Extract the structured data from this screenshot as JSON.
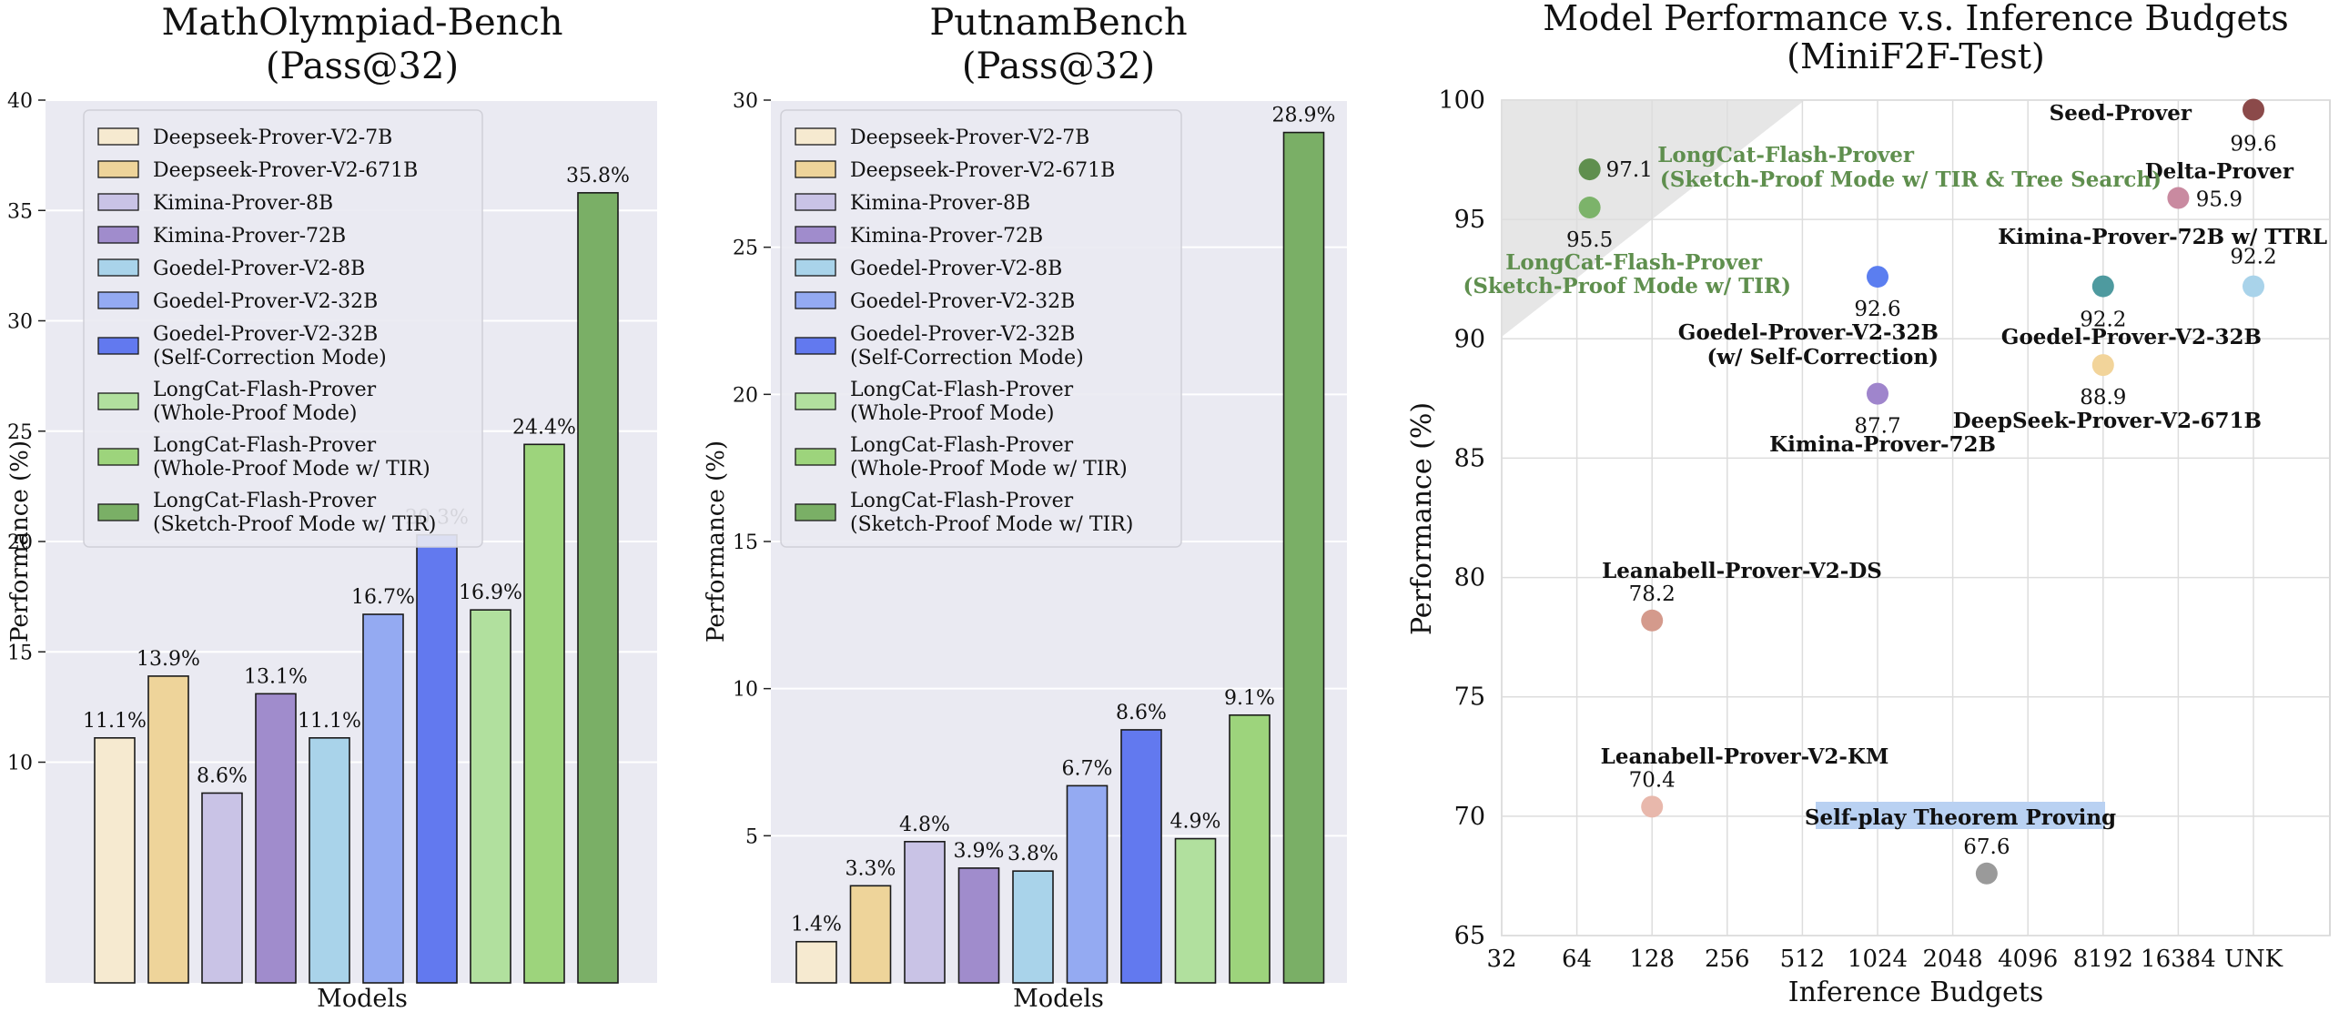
{
  "colors": {
    "panel_bg": "#eaeaf2",
    "scatter_bg": "#ffffff",
    "longcat_green": "#5f8f4e",
    "budget_box": "#b9d1f2"
  },
  "chart_data": [
    {
      "type": "bar",
      "title_line1": "MathOlympiad-Bench",
      "title_line2": "(Pass@32)",
      "xlabel": "Models",
      "ylabel": "Performance (%)",
      "ylim": [
        0,
        40
      ],
      "yticks": [
        10,
        15,
        20,
        25,
        30,
        35,
        40
      ],
      "grid": true,
      "legend_position": "upper-left",
      "categories": [
        "Deepseek-Prover-V2-7B",
        "Deepseek-Prover-V2-671B",
        "Kimina-Prover-8B",
        "Kimina-Prover-72B",
        "Goedel-Prover-V2-8B",
        "Goedel-Prover-V2-32B",
        "Goedel-Prover-V2-32B (Self-Correction Mode)",
        "LongCat-Flash-Prover (Whole-Proof Mode)",
        "LongCat-Flash-Prover (Whole-Proof Mode w/ TIR)",
        "LongCat-Flash-Prover (Sketch-Proof Mode w/ TIR)"
      ],
      "values": [
        11.1,
        13.9,
        8.6,
        13.1,
        11.1,
        16.7,
        20.3,
        16.9,
        24.4,
        35.8
      ],
      "labels": [
        "11.1%",
        "13.9%",
        "8.6%",
        "13.1%",
        "11.1%",
        "16.7%",
        "20.3%",
        "16.9%",
        "24.4%",
        "35.8%"
      ]
    },
    {
      "type": "bar",
      "title_line1": "PutnamBench",
      "title_line2": "(Pass@32)",
      "xlabel": "Models",
      "ylabel": "Performance (%)",
      "ylim": [
        0,
        30
      ],
      "yticks": [
        5,
        10,
        15,
        20,
        25,
        30
      ],
      "grid": true,
      "legend_position": "upper-left",
      "categories": [
        "Deepseek-Prover-V2-7B",
        "Deepseek-Prover-V2-671B",
        "Kimina-Prover-8B",
        "Kimina-Prover-72B",
        "Goedel-Prover-V2-8B",
        "Goedel-Prover-V2-32B",
        "Goedel-Prover-V2-32B (Self-Correction Mode)",
        "LongCat-Flash-Prover (Whole-Proof Mode)",
        "LongCat-Flash-Prover (Whole-Proof Mode w/ TIR)",
        "LongCat-Flash-Prover (Sketch-Proof Mode w/ TIR)"
      ],
      "values": [
        1.4,
        3.3,
        4.8,
        3.9,
        3.8,
        6.7,
        8.6,
        4.9,
        9.1,
        28.9
      ],
      "labels": [
        "1.4%",
        "3.3%",
        "4.8%",
        "3.9%",
        "3.8%",
        "6.7%",
        "8.6%",
        "4.9%",
        "9.1%",
        "28.9%"
      ]
    },
    {
      "type": "scatter",
      "title_line1": "Model Performance v.s. Inference Budgets",
      "title_line2": "(MiniF2F-Test)",
      "xlabel": "Inference Budgets",
      "ylabel": "Performance (%)",
      "x_categories": [
        "32",
        "64",
        "128",
        "256",
        "512",
        "1024",
        "2048",
        "4096",
        "8192",
        "16384",
        "UNK"
      ],
      "ylim": [
        65,
        100
      ],
      "yticks": [
        65,
        70,
        75,
        80,
        85,
        90,
        95,
        100
      ],
      "grid": true,
      "points": [
        {
          "name": "Seed-Prover",
          "x": "UNK",
          "y": 99.6,
          "value_label": "99.6",
          "color": "#8b4a4a"
        },
        {
          "name": "Delta-Prover",
          "x": "16384",
          "y": 95.9,
          "value_label": "95.9",
          "color": "#c98aa0"
        },
        {
          "name": "Kimina-Prover-72B w/ TTRL",
          "x": "UNK",
          "y": 92.2,
          "value_label": "92.2",
          "color": "#a9d3ea"
        },
        {
          "name": "Goedel-Prover-V2-32B",
          "x": "8192",
          "y": 92.2,
          "value_label": "92.2",
          "color": "#4e9a9f"
        },
        {
          "name": "DeepSeek-Prover-V2-671B",
          "x": "8192",
          "y": 88.9,
          "value_label": "88.9",
          "color": "#f2d49a"
        },
        {
          "name": "Goedel-Prover-V2-32B (w/ Self-Correction)",
          "x": "1024",
          "y": 92.6,
          "value_label": "92.6",
          "color": "#5b7ef0"
        },
        {
          "name": "Kimina-Prover-72B",
          "x": "1024",
          "y": 87.7,
          "value_label": "87.7",
          "color": "#9f85cc"
        },
        {
          "name": "LongCat-Flash-Prover (Sketch-Proof Mode w/ TIR & Tree Search)",
          "x": "72",
          "y": 97.1,
          "value_label": "97.1",
          "color": "#5f8f4e"
        },
        {
          "name": "LongCat-Flash-Prover (Sketch-Proof Mode w/ TIR)",
          "x": "72",
          "y": 95.5,
          "value_label": "95.5",
          "color": "#7cb36a"
        },
        {
          "name": "Leanabell-Prover-V2-DS",
          "x": "128",
          "y": 78.2,
          "value_label": "78.2",
          "color": "#d49a8c"
        },
        {
          "name": "Leanabell-Prover-V2-KM",
          "x": "128",
          "y": 70.4,
          "value_label": "70.4",
          "color": "#e8b8ac"
        },
        {
          "name": "Self-play Theorem Proving",
          "x": "2800",
          "y": 67.6,
          "value_label": "67.6",
          "color": "#9a9a9a"
        }
      ],
      "labels": {
        "seed": "Seed-Prover",
        "delta": "Delta-Prover",
        "kimina_ttrl": "Kimina-Prover-72B w/ TTRL",
        "goedel32": "Goedel-Prover-V2-32B",
        "deepseek671": "DeepSeek-Prover-V2-671B",
        "goedel_sc_1": "Goedel-Prover-V2-32B",
        "goedel_sc_2": "(w/ Self-Correction)",
        "kimina72": "Kimina-Prover-72B",
        "longcat_tree_1": "LongCat-Flash-Prover",
        "longcat_tree_2": "(Sketch-Proof Mode w/ TIR & Tree Search)",
        "longcat_tir_1": "LongCat-Flash-Prover",
        "longcat_tir_2": "(Sketch-Proof Mode w/ TIR)",
        "leanabell_ds": "Leanabell-Prover-V2-DS",
        "leanabell_km": "Leanabell-Prover-V2-KM",
        "selfplay": "Self-play Theorem Proving"
      }
    }
  ],
  "legend": {
    "entries": [
      {
        "line1": "Deepseek-Prover-V2-7B",
        "line2": "",
        "color": "#f6ead0"
      },
      {
        "line1": "Deepseek-Prover-V2-671B",
        "line2": "",
        "color": "#eed49a"
      },
      {
        "line1": "Kimina-Prover-8B",
        "line2": "",
        "color": "#c9c3e6"
      },
      {
        "line1": "Kimina-Prover-72B",
        "line2": "",
        "color": "#a08ccc"
      },
      {
        "line1": "Goedel-Prover-V2-8B",
        "line2": "",
        "color": "#a9d3ea"
      },
      {
        "line1": "Goedel-Prover-V2-32B",
        "line2": "",
        "color": "#94aaf2"
      },
      {
        "line1": "Goedel-Prover-V2-32B",
        "line2": "(Self-Correction Mode)",
        "color": "#6279ef"
      },
      {
        "line1": "LongCat-Flash-Prover",
        "line2": "(Whole-Proof Mode)",
        "color": "#b1e09e"
      },
      {
        "line1": "LongCat-Flash-Prover",
        "line2": "(Whole-Proof Mode w/ TIR)",
        "color": "#9dd47c"
      },
      {
        "line1": "LongCat-Flash-Prover",
        "line2": "(Sketch-Proof Mode w/ TIR)",
        "color": "#7aaf66"
      }
    ]
  }
}
